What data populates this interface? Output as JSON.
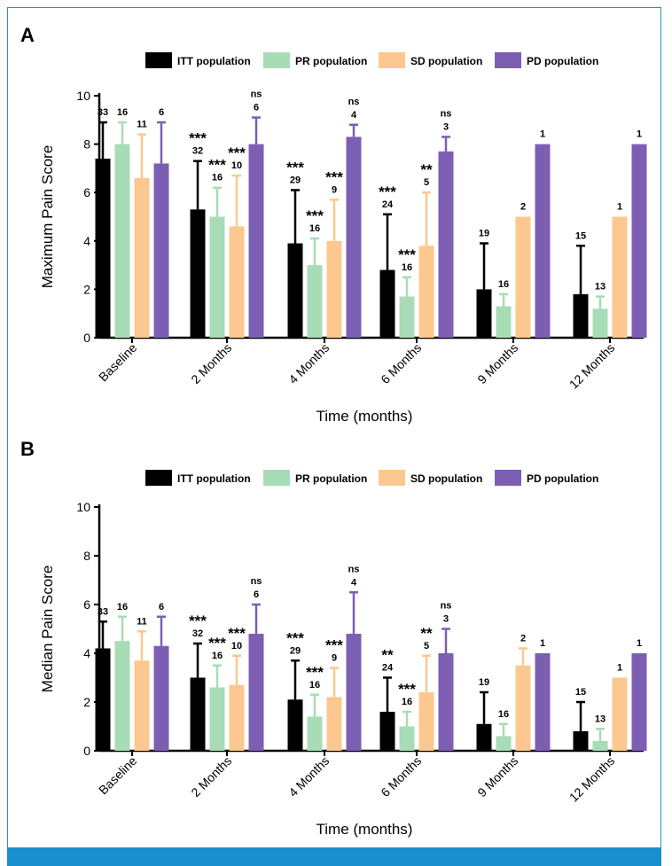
{
  "colors": {
    "itt": "#000000",
    "pr": "#a8dcb6",
    "sd": "#fcc88f",
    "pd": "#7c5fb3",
    "frame": "#2f8fc1",
    "bottom_bar": "#1a8fcf"
  },
  "legend": [
    {
      "key": "itt",
      "label": "ITT population"
    },
    {
      "key": "pr",
      "label": "PR population"
    },
    {
      "key": "sd",
      "label": "SD population"
    },
    {
      "key": "pd",
      "label": "PD population"
    }
  ],
  "chart_data": [
    {
      "panel": "A",
      "type": "bar",
      "xlabel": "Time (months)",
      "ylabel": "Maximum Pain Score",
      "ylim": [
        0,
        10
      ],
      "yticks": [
        0,
        2,
        4,
        6,
        8,
        10
      ],
      "categories": [
        "Baseline",
        "2 Months",
        "4 Months",
        "6 Months",
        "9 Months",
        "12 Months"
      ],
      "series": [
        {
          "name": "ITT population",
          "key": "itt",
          "values": [
            7.4,
            5.3,
            3.9,
            2.8,
            2.0,
            1.8
          ],
          "errors": [
            1.5,
            2.0,
            2.2,
            2.3,
            1.9,
            2.0
          ],
          "n": [
            "33",
            "32",
            "29",
            "24",
            "19",
            "15"
          ],
          "sig": [
            "",
            "***",
            "***",
            "***",
            "",
            ""
          ]
        },
        {
          "name": "PR population",
          "key": "pr",
          "values": [
            8.0,
            5.0,
            3.0,
            1.7,
            1.3,
            1.2
          ],
          "errors": [
            0.9,
            1.2,
            1.1,
            0.8,
            0.5,
            0.5
          ],
          "n": [
            "16",
            "16",
            "16",
            "16",
            "16",
            "13"
          ],
          "sig": [
            "",
            "***",
            "***",
            "***",
            "",
            ""
          ]
        },
        {
          "name": "SD population",
          "key": "sd",
          "values": [
            6.6,
            4.6,
            4.0,
            3.8,
            5.0,
            5.0
          ],
          "errors": [
            1.8,
            2.1,
            1.7,
            2.2,
            null,
            null
          ],
          "n": [
            "11",
            "10",
            "9",
            "5",
            "2",
            "1"
          ],
          "sig": [
            "",
            "***",
            "***",
            "**",
            "",
            ""
          ]
        },
        {
          "name": "PD population",
          "key": "pd",
          "values": [
            7.2,
            8.0,
            8.3,
            7.7,
            8.0,
            8.0
          ],
          "errors": [
            1.7,
            1.1,
            0.5,
            0.6,
            null,
            null
          ],
          "n": [
            "6",
            "6",
            "4",
            "3",
            "1",
            "1"
          ],
          "sig": [
            "",
            "ns",
            "ns",
            "ns",
            "",
            ""
          ]
        }
      ]
    },
    {
      "panel": "B",
      "type": "bar",
      "xlabel": "Time (months)",
      "ylabel": "Median Pain Score",
      "ylim": [
        0,
        10
      ],
      "yticks": [
        0,
        2,
        4,
        6,
        8,
        10
      ],
      "categories": [
        "Baseline",
        "2 Months",
        "4 Months",
        "6 Months",
        "9 Months",
        "12 Months"
      ],
      "series": [
        {
          "name": "ITT population",
          "key": "itt",
          "values": [
            4.2,
            3.0,
            2.1,
            1.6,
            1.1,
            0.8
          ],
          "errors": [
            1.1,
            1.4,
            1.6,
            1.4,
            1.3,
            1.2
          ],
          "n": [
            "33",
            "32",
            "29",
            "24",
            "19",
            "15"
          ],
          "sig": [
            "",
            "***",
            "***",
            "**",
            "",
            ""
          ]
        },
        {
          "name": "PR population",
          "key": "pr",
          "values": [
            4.5,
            2.6,
            1.4,
            1.0,
            0.6,
            0.4
          ],
          "errors": [
            1.0,
            0.9,
            0.9,
            0.6,
            0.5,
            0.5
          ],
          "n": [
            "16",
            "16",
            "16",
            "16",
            "16",
            "13"
          ],
          "sig": [
            "",
            "***",
            "***",
            "***",
            "",
            ""
          ]
        },
        {
          "name": "SD population",
          "key": "sd",
          "values": [
            3.7,
            2.7,
            2.2,
            2.4,
            3.5,
            3.0
          ],
          "errors": [
            1.2,
            1.2,
            1.2,
            1.5,
            0.7,
            null
          ],
          "n": [
            "11",
            "10",
            "9",
            "5",
            "2",
            "1"
          ],
          "sig": [
            "",
            "***",
            "***",
            "**",
            "",
            ""
          ]
        },
        {
          "name": "PD population",
          "key": "pd",
          "values": [
            4.3,
            4.8,
            4.8,
            4.0,
            4.0,
            4.0
          ],
          "errors": [
            1.2,
            1.2,
            1.7,
            1.0,
            null,
            null
          ],
          "n": [
            "6",
            "6",
            "4",
            "3",
            "1",
            "1"
          ],
          "sig": [
            "",
            "ns",
            "ns",
            "ns",
            "",
            ""
          ]
        }
      ]
    }
  ]
}
